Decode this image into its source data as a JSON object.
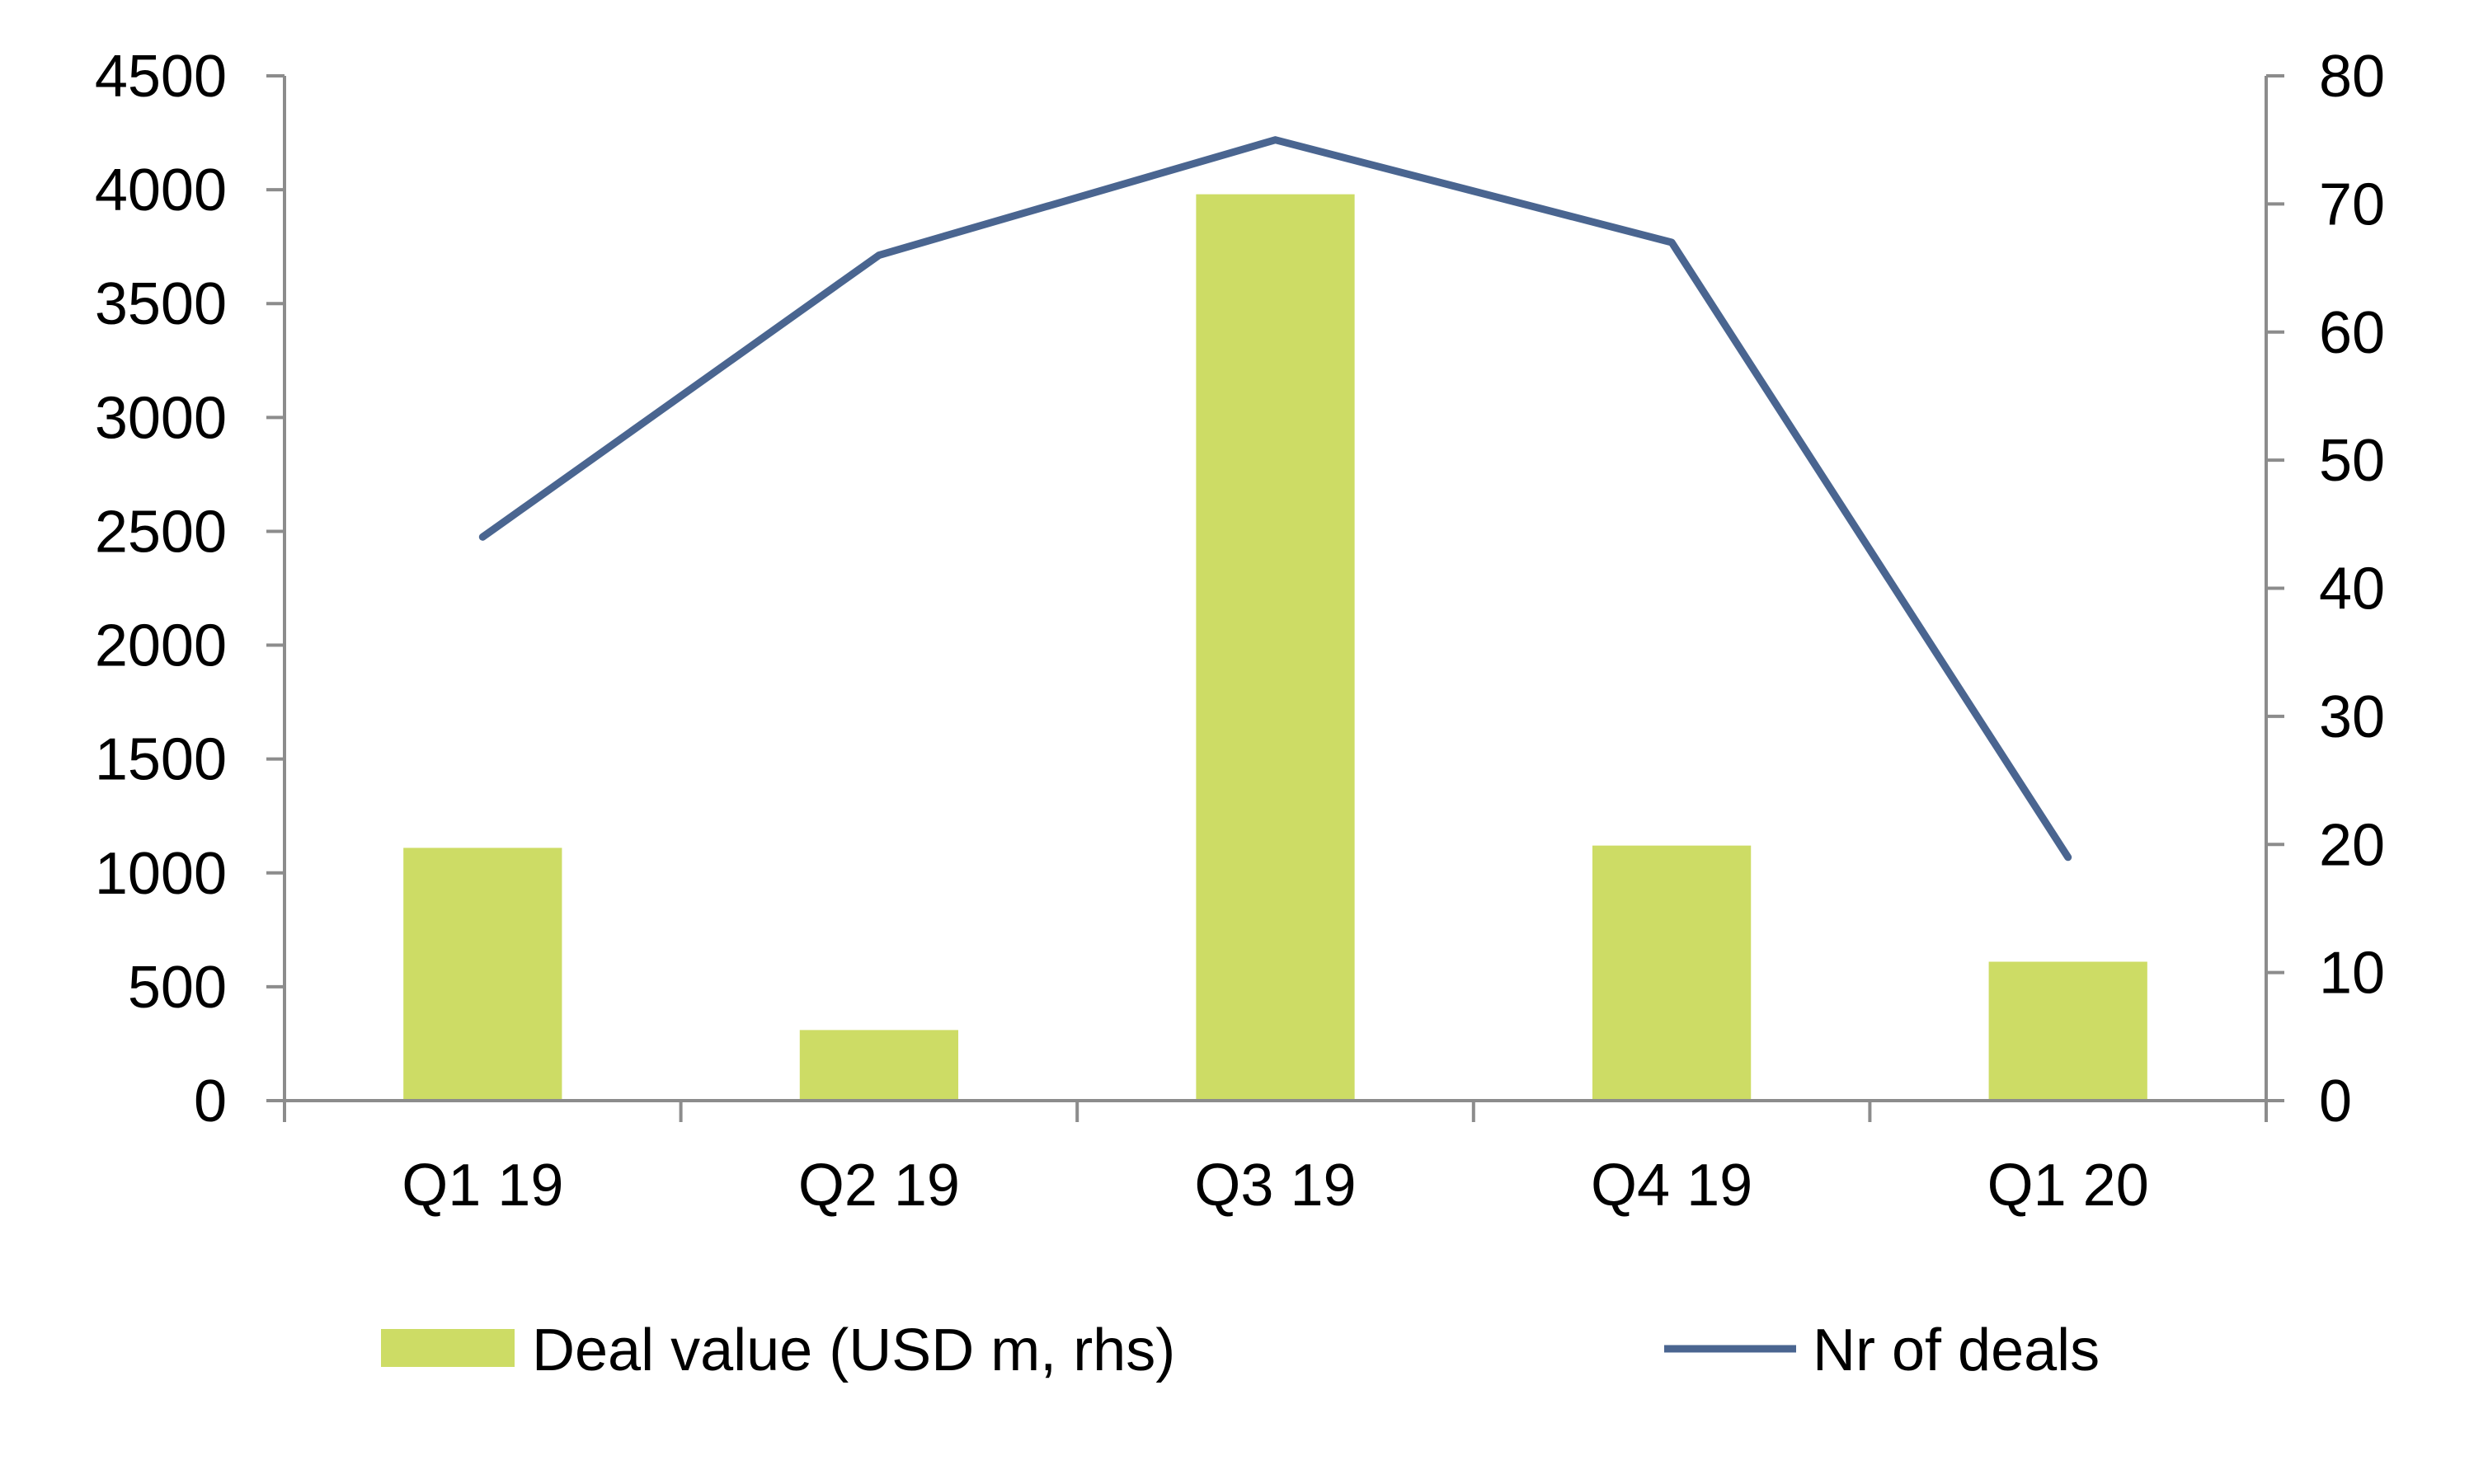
{
  "chart_data": {
    "type": "bar",
    "categories": [
      "Q1 19",
      "Q2 19",
      "Q3 19",
      "Q4 19",
      "Q1 20"
    ],
    "series": [
      {
        "name": "Deal value (USD m, rhs)",
        "type": "bar",
        "axis": "left",
        "color": "#cddc65",
        "values": [
          1110,
          310,
          3980,
          1120,
          610
        ]
      },
      {
        "name": "Nr of deals",
        "type": "line",
        "axis": "right",
        "color": "#4a6590",
        "values": [
          44,
          66,
          75,
          67,
          19
        ]
      }
    ],
    "y_left": {
      "min": 0,
      "max": 4500,
      "step": 500
    },
    "y_right": {
      "min": 0,
      "max": 80,
      "step": 10
    },
    "legend_position": "bottom",
    "grid": false
  }
}
